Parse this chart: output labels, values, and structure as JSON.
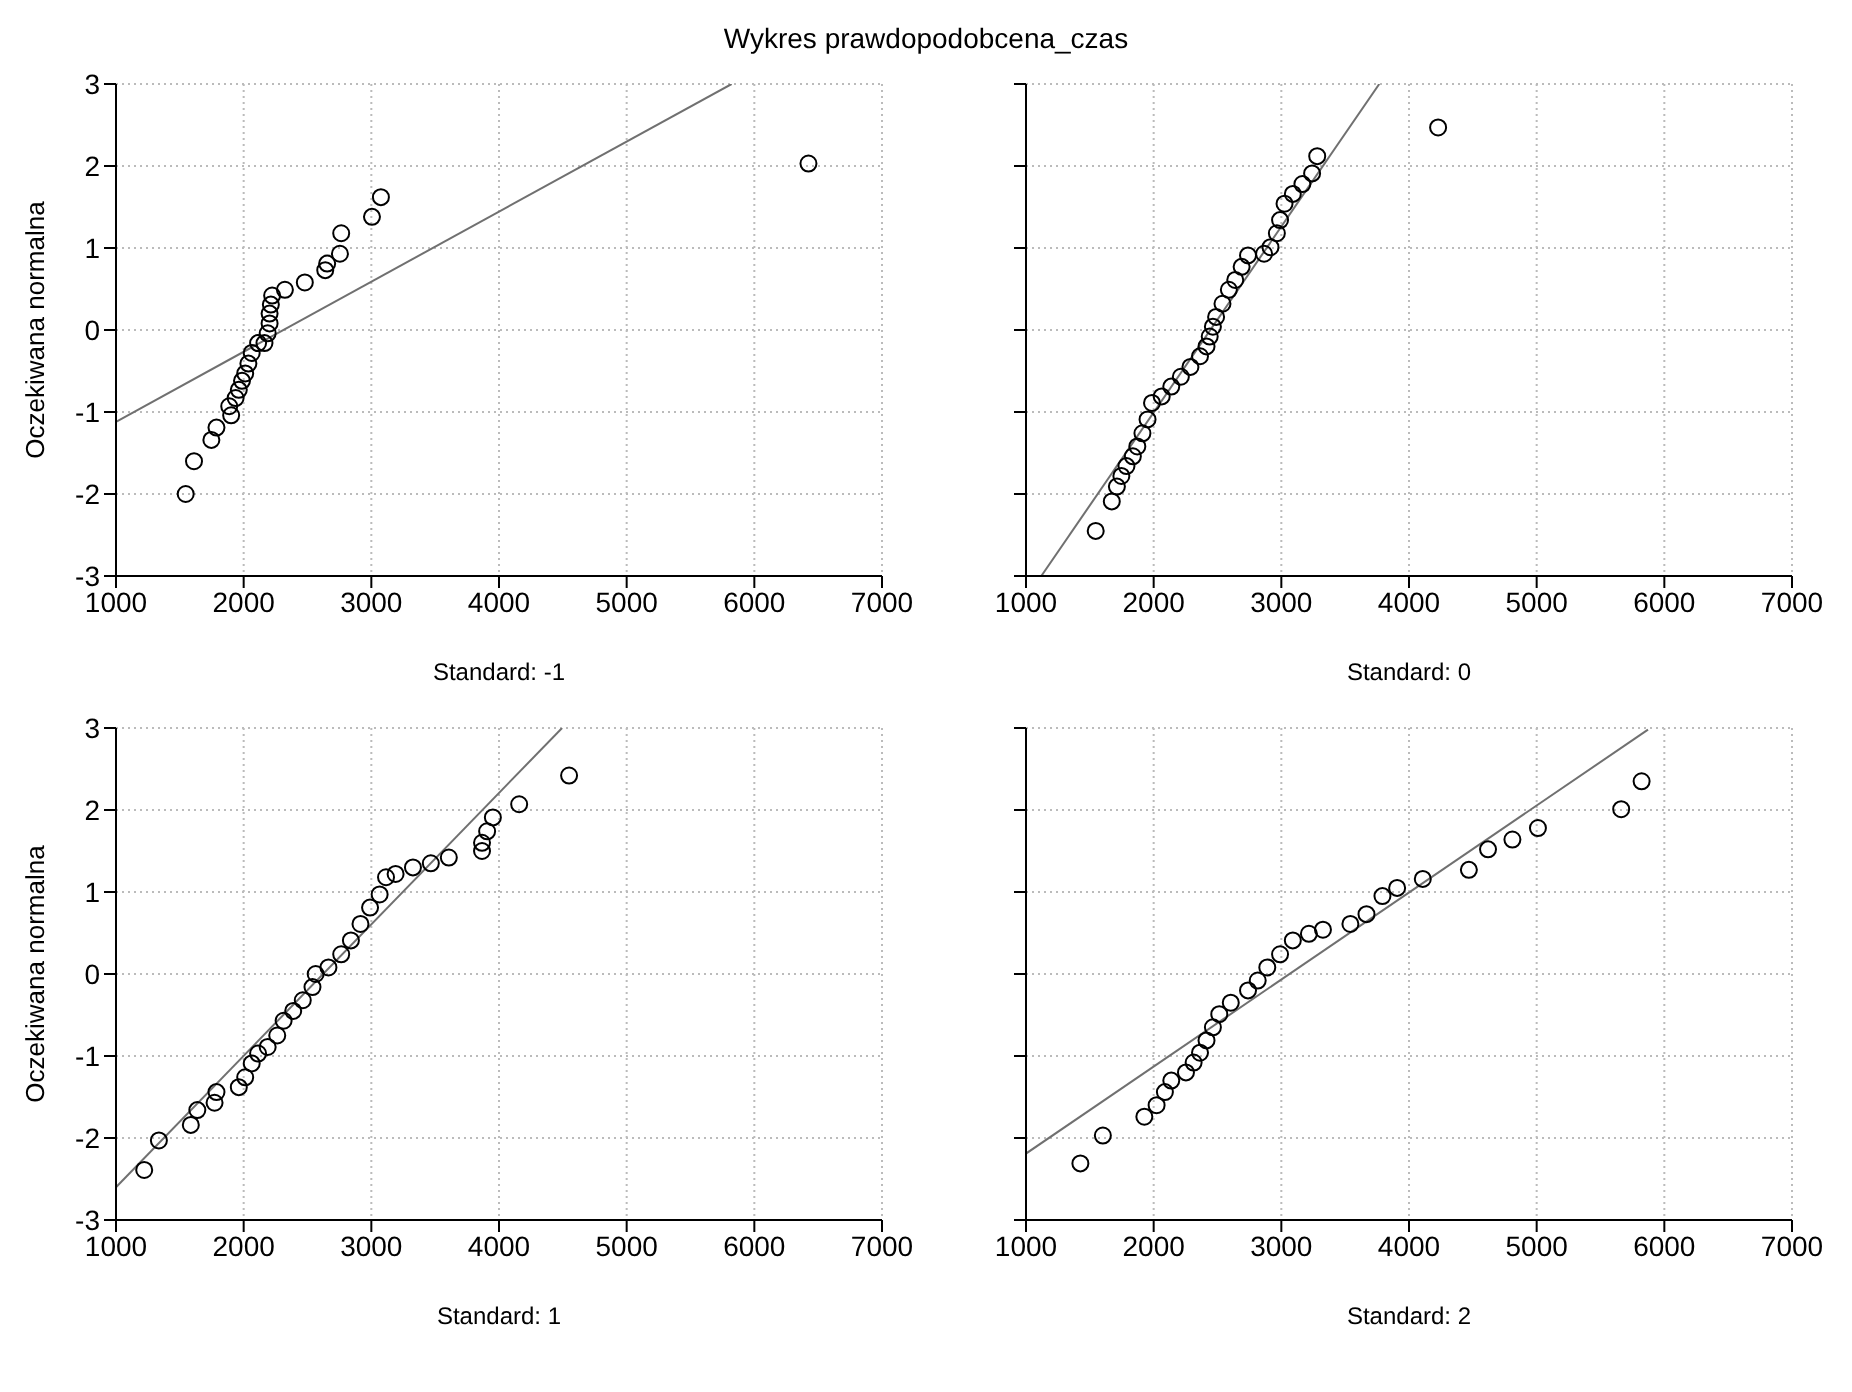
{
  "chart_data": [
    {
      "type": "scatter",
      "title": "Wykres prawdopodobcena_czas",
      "xlabel": "Standard: -1",
      "ylabel": "Oczekiwana normalna",
      "xlim": [
        1000,
        7000
      ],
      "xticks": [
        1000,
        2000,
        3000,
        4000,
        5000,
        6000,
        7000
      ],
      "ylim": [
        -3,
        3
      ],
      "yticks": [
        -3,
        -2,
        -1,
        0,
        1,
        2,
        3
      ],
      "grid": true,
      "marker": "circle",
      "series": [
        {
          "type": "scatter",
          "color": "#000000",
          "x": [
            1546,
            1611,
            1747,
            1787,
            1902,
            1887,
            1937,
            1962,
            1987,
            2012,
            2037,
            2063,
            2113,
            2163,
            2188,
            2203,
            2203,
            2213,
            2223,
            2323,
            2479,
            2639,
            2654,
            2754,
            2764,
            3005,
            3075,
            6424
          ],
          "values": [
            -2.0,
            -1.6,
            -1.34,
            -1.19,
            -1.04,
            -0.93,
            -0.83,
            -0.73,
            -0.62,
            -0.53,
            -0.41,
            -0.28,
            -0.16,
            -0.16,
            -0.04,
            0.08,
            0.2,
            0.31,
            0.42,
            0.49,
            0.58,
            0.73,
            0.81,
            0.93,
            1.18,
            1.38,
            1.62,
            2.03
          ]
        },
        {
          "type": "line",
          "marker": "none",
          "color": "#707070",
          "x": [
            1000,
            5822
          ],
          "values": [
            -1.12,
            3.0
          ]
        }
      ]
    },
    {
      "type": "scatter",
      "xlabel": "Standard: 0",
      "xlim": [
        1000,
        7000
      ],
      "xticks": [
        1000,
        2000,
        3000,
        4000,
        5000,
        6000,
        7000
      ],
      "ylim": [
        -3,
        3
      ],
      "yticks": [
        -3,
        -2,
        -1,
        0,
        1,
        2,
        3
      ],
      "tick_labels": "x",
      "grid": true,
      "marker": "circle",
      "series": [
        {
          "type": "scatter",
          "color": "#000000",
          "x": [
            1546,
            1672,
            1712,
            1747,
            1787,
            1837,
            1872,
            1912,
            1952,
            1987,
            2063,
            2138,
            2213,
            2288,
            2363,
            2414,
            2439,
            2464,
            2489,
            2539,
            2589,
            2639,
            2689,
            2739,
            2865,
            2915,
            2965,
            2990,
            3025,
            3090,
            3165,
            3241,
            3281,
            4228
          ],
          "values": [
            -2.45,
            -2.09,
            -1.91,
            -1.78,
            -1.66,
            -1.54,
            -1.42,
            -1.26,
            -1.09,
            -0.89,
            -0.81,
            -0.69,
            -0.57,
            -0.45,
            -0.32,
            -0.2,
            -0.08,
            0.04,
            0.16,
            0.32,
            0.49,
            0.61,
            0.77,
            0.91,
            0.93,
            1.01,
            1.18,
            1.34,
            1.54,
            1.66,
            1.78,
            1.91,
            2.12,
            2.47
          ]
        },
        {
          "type": "line",
          "marker": "none",
          "color": "#707070",
          "x": [
            1120,
            3767
          ],
          "values": [
            -3,
            3
          ]
        }
      ]
    },
    {
      "type": "scatter",
      "xlabel": "Standard: 1",
      "ylabel": "Oczekiwana normalna",
      "xlim": [
        1000,
        7000
      ],
      "xticks": [
        1000,
        2000,
        3000,
        4000,
        5000,
        6000,
        7000
      ],
      "ylim": [
        -3,
        3
      ],
      "yticks": [
        -3,
        -2,
        -1,
        0,
        1,
        2,
        3
      ],
      "grid": true,
      "marker": "circle",
      "series": [
        {
          "type": "scatter",
          "color": "#000000",
          "x": [
            1221,
            1336,
            1586,
            1637,
            1772,
            1787,
            1962,
            2012,
            2063,
            2113,
            2188,
            2263,
            2313,
            2388,
            2463,
            2539,
            2564,
            2664,
            2764,
            2840,
            2915,
            2990,
            3065,
            3115,
            3190,
            3326,
            3466,
            3607,
            3867,
            3867,
            3907,
            3952,
            4158,
            4549
          ],
          "values": [
            -2.39,
            -2.03,
            -1.84,
            -1.66,
            -1.57,
            -1.44,
            -1.38,
            -1.26,
            -1.09,
            -0.97,
            -0.89,
            -0.75,
            -0.57,
            -0.45,
            -0.32,
            -0.16,
            0,
            0.08,
            0.24,
            0.41,
            0.61,
            0.81,
            0.97,
            1.18,
            1.22,
            1.3,
            1.35,
            1.42,
            1.5,
            1.6,
            1.74,
            1.91,
            2.07,
            2.42
          ]
        },
        {
          "type": "line",
          "marker": "none",
          "color": "#707070",
          "x": [
            1000,
            4494
          ],
          "values": [
            -2.6,
            3.0
          ]
        }
      ]
    },
    {
      "type": "scatter",
      "xlabel": "Standard: 2",
      "xlim": [
        1000,
        7000
      ],
      "xticks": [
        1000,
        2000,
        3000,
        4000,
        5000,
        6000,
        7000
      ],
      "ylim": [
        -3,
        3
      ],
      "yticks": [
        -3,
        -2,
        -1,
        0,
        1,
        2,
        3
      ],
      "tick_labels": "x",
      "grid": true,
      "marker": "circle",
      "series": [
        {
          "type": "scatter",
          "color": "#000000",
          "x": [
            1426,
            1602,
            1927,
            2023,
            2088,
            2138,
            2253,
            2313,
            2363,
            2414,
            2464,
            2514,
            2604,
            2739,
            2815,
            2890,
            2990,
            3090,
            3216,
            3326,
            3541,
            3667,
            3792,
            3907,
            4108,
            4469,
            4619,
            4810,
            5010,
            5662,
            5822
          ],
          "values": [
            -2.31,
            -1.97,
            -1.74,
            -1.6,
            -1.44,
            -1.3,
            -1.2,
            -1.08,
            -0.96,
            -0.81,
            -0.65,
            -0.49,
            -0.35,
            -0.2,
            -0.08,
            0.08,
            0.24,
            0.41,
            0.49,
            0.54,
            0.61,
            0.73,
            0.95,
            1.05,
            1.16,
            1.27,
            1.52,
            1.64,
            1.78,
            2.01,
            2.35
          ]
        },
        {
          "type": "line",
          "marker": "none",
          "color": "#707070",
          "x": [
            1000,
            5872
          ],
          "values": [
            -2.19,
            2.98
          ]
        }
      ]
    }
  ]
}
